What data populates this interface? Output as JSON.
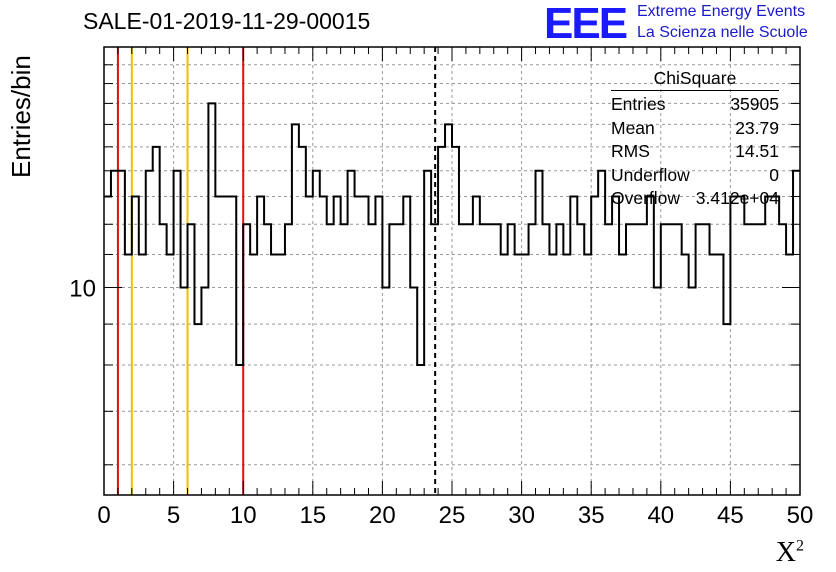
{
  "title": "SALE-01-2019-11-29-00015",
  "logo": {
    "mark": "EEE",
    "line1": "Extreme Energy Events",
    "line2": "La Scienza nelle Scuole",
    "color": "#1a1aff"
  },
  "stats": {
    "name": "ChiSquare",
    "rows": [
      {
        "label": "Entries",
        "value": "35905"
      },
      {
        "label": "Mean",
        "value": "23.79"
      },
      {
        "label": "RMS",
        "value": "14.51"
      },
      {
        "label": "Underflow",
        "value": "0"
      },
      {
        "label": "Overflow",
        "value": "3.412e+04"
      }
    ]
  },
  "chart_data": {
    "type": "histogram",
    "xlabel": "X",
    "xlabel_sup": "2",
    "ylabel": "Entries/bin",
    "xlim": [
      0,
      50
    ],
    "ylim": [
      5.5,
      20
    ],
    "ylog": true,
    "grid": true,
    "xticks": [
      0,
      5,
      10,
      15,
      20,
      25,
      30,
      35,
      40,
      45,
      50
    ],
    "yticks_labeled": [
      10
    ],
    "bin_width": 0.5,
    "counts": [
      13,
      14,
      14,
      11,
      13,
      11,
      14,
      15,
      12,
      11,
      14,
      10,
      12,
      9,
      10,
      17,
      13,
      13,
      13,
      8,
      12,
      11,
      13,
      12,
      11,
      11,
      12,
      16,
      15,
      13,
      14,
      13,
      12,
      13,
      12,
      14,
      13,
      13,
      12,
      13,
      10,
      12,
      12,
      13,
      10,
      8,
      14,
      12,
      15,
      16,
      15,
      12,
      12,
      13,
      12,
      12,
      12,
      11,
      12,
      11,
      11,
      12,
      14,
      12,
      11,
      12,
      11,
      13,
      12,
      11,
      13,
      14,
      12,
      13,
      11,
      12,
      12,
      12,
      13,
      10,
      12,
      12,
      12,
      11,
      10,
      12,
      12,
      11,
      11,
      9,
      13,
      13,
      12,
      12,
      12,
      13,
      13,
      12,
      11,
      14
    ],
    "vlines": [
      {
        "x": 1,
        "color": "#e01010",
        "style": "solid"
      },
      {
        "x": 2,
        "color": "#f0c000",
        "style": "solid"
      },
      {
        "x": 6,
        "color": "#f0c000",
        "style": "solid"
      },
      {
        "x": 10,
        "color": "#e01010",
        "style": "solid"
      },
      {
        "x": 23.79,
        "color": "#000000",
        "style": "dashed"
      }
    ]
  }
}
